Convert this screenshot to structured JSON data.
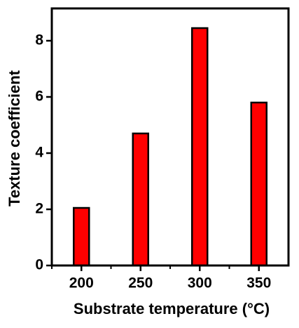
{
  "chart_data": {
    "type": "bar",
    "x_label": "Substrate temperature (°C)",
    "y_label": "Texture coefficient",
    "categories": [
      "200",
      "250",
      "300",
      "350"
    ],
    "values": [
      2.05,
      4.7,
      8.45,
      5.8
    ],
    "color": "#ff0000",
    "ylim": [
      0,
      9.15
    ],
    "yticks": [
      0,
      2,
      4,
      6,
      8
    ]
  }
}
